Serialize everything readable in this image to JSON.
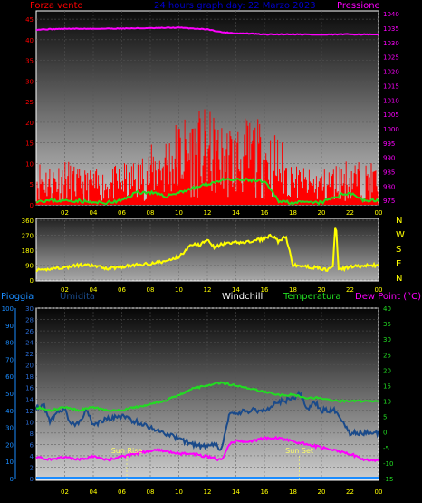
{
  "header": {
    "left_label": "Forza vento",
    "center_label": "24 hours graph day:  22 Marzo 2023",
    "right_label": "Pressione"
  },
  "direction_labels": [
    "N",
    "W",
    "S",
    "E",
    "N"
  ],
  "bottom_header": {
    "pioggia": "Pioggia",
    "umidita": "Umidita",
    "windchill": "Windchill",
    "temperatura": "Temperatura",
    "dew_point": "Dew Point (°C)"
  },
  "sun": {
    "rise_label": "Sun Rise",
    "set_label": "Sun Set",
    "rise_time": 6.35,
    "set_time": 18.45
  },
  "colors": {
    "wind": "#ff0000",
    "gust_avg": "#22dd22",
    "pressure": "#ff00ff",
    "direction": "#ffff00",
    "temperature": "#22dd22",
    "humidity": "#1a4a8a",
    "dew_point": "#ff00ff",
    "rain": "#1a8cff",
    "header_center": "#0000cc"
  },
  "chart_data": [
    {
      "type": "line",
      "name": "wind-pressure",
      "x_tick_labels": [
        "02",
        "04",
        "06",
        "08",
        "10",
        "12",
        "14",
        "16",
        "18",
        "20",
        "22",
        "00"
      ],
      "x_range": [
        0,
        24
      ],
      "y_left_ticks": [
        "0",
        "5",
        "10",
        "15",
        "20",
        "25",
        "30",
        "35",
        "40",
        "45"
      ],
      "ylim_left": [
        0,
        47
      ],
      "y_right_ticks": [
        "975",
        "980",
        "985",
        "990",
        "995",
        "1000",
        "1005",
        "1010",
        "1015",
        "1020",
        "1025",
        "1030",
        "1035",
        "1040"
      ],
      "ylim_right": [
        973.5,
        1041
      ],
      "series": [
        {
          "key": "wind_speed",
          "axis": "left",
          "style": "spiky",
          "x": [
            0,
            1,
            2,
            3,
            4,
            5,
            6,
            7,
            8,
            9,
            10,
            11,
            12,
            13,
            14,
            15,
            16,
            17,
            18,
            19,
            20,
            21,
            22,
            23,
            24
          ],
          "values": [
            8,
            7,
            8,
            6,
            6,
            6,
            7,
            8,
            10,
            12,
            15,
            16,
            16,
            14,
            14,
            15,
            14,
            12,
            7,
            6,
            6,
            7,
            8,
            7,
            7
          ]
        },
        {
          "key": "avg_wind",
          "axis": "left",
          "x": [
            0,
            1,
            2,
            3,
            4,
            5,
            6,
            7,
            8,
            9,
            10,
            11,
            12,
            13,
            14,
            15,
            16,
            17,
            18,
            19,
            20,
            21,
            22,
            23,
            24
          ],
          "values": [
            1,
            1,
            1,
            1,
            0.5,
            0.5,
            1,
            3,
            3,
            2,
            3,
            4,
            5,
            6,
            6,
            6,
            5.5,
            1,
            0.5,
            0.5,
            0.5,
            2,
            3,
            1,
            1
          ]
        },
        {
          "key": "pressure",
          "axis": "right",
          "x": [
            0,
            2,
            4,
            6,
            8,
            10,
            12,
            13,
            14,
            15,
            16,
            18,
            20,
            22,
            24
          ],
          "values": [
            1034.5,
            1034.8,
            1034.8,
            1034.9,
            1035.0,
            1035.2,
            1034.6,
            1033.6,
            1033.2,
            1033.1,
            1032.8,
            1032.9,
            1032.7,
            1032.9,
            1032.7
          ]
        }
      ]
    },
    {
      "type": "line",
      "name": "wind-direction",
      "x_tick_labels": [
        "02",
        "04",
        "06",
        "08",
        "10",
        "12",
        "14",
        "16",
        "18",
        "20",
        "22",
        "00"
      ],
      "x_range": [
        0,
        24
      ],
      "y_ticks": [
        "0",
        "90",
        "180",
        "270",
        "360"
      ],
      "ylim": [
        0,
        360
      ],
      "series": [
        {
          "key": "direction",
          "x": [
            0,
            0.5,
            1,
            2,
            3,
            4,
            5,
            6,
            7,
            8,
            9,
            10,
            10.5,
            11,
            11.5,
            12,
            12.5,
            13,
            14,
            15,
            16,
            16.5,
            17,
            17.5,
            18,
            19,
            20,
            20.5,
            20.8,
            21,
            21.2,
            22,
            23,
            24
          ],
          "values": [
            60,
            55,
            70,
            75,
            90,
            85,
            70,
            80,
            90,
            100,
            110,
            140,
            180,
            220,
            210,
            250,
            195,
            215,
            225,
            230,
            250,
            270,
            230,
            260,
            90,
            80,
            70,
            60,
            90,
            360,
            60,
            80,
            85,
            90
          ]
        }
      ]
    },
    {
      "type": "line",
      "name": "temperature-humidity",
      "x_tick_labels": [
        "02",
        "04",
        "06",
        "08",
        "10",
        "12",
        "14",
        "16",
        "18",
        "20",
        "22",
        "00"
      ],
      "x_range": [
        0,
        24
      ],
      "y_left_ticks": [
        "0",
        "10",
        "20",
        "30",
        "40",
        "50",
        "60",
        "70",
        "80",
        "90",
        "100"
      ],
      "y_left2_ticks": [
        "0",
        "2",
        "4",
        "6",
        "8",
        "10",
        "12",
        "14",
        "16",
        "18",
        "20",
        "22",
        "24",
        "26",
        "28",
        "30"
      ],
      "ylim_left2": [
        0,
        30
      ],
      "y_right_ticks": [
        "-15",
        "-10",
        "-5",
        "0",
        "5",
        "10",
        "15",
        "20",
        "25",
        "30",
        "35",
        "40"
      ],
      "ylim_right": [
        -15,
        40
      ],
      "series": [
        {
          "key": "temperature",
          "axis": "right",
          "x": [
            0,
            1,
            2,
            3,
            4,
            5,
            6,
            7,
            8,
            9,
            10,
            11,
            12,
            13,
            14,
            15,
            16,
            17,
            18,
            19,
            20,
            21,
            22,
            23,
            24
          ],
          "values": [
            8,
            7,
            8,
            7,
            8,
            7,
            7,
            8,
            9,
            10,
            12,
            14,
            15,
            16,
            15,
            14,
            13,
            12,
            12,
            11,
            11,
            10,
            10,
            10,
            10
          ]
        },
        {
          "key": "humidity",
          "axis": "left2",
          "x": [
            0,
            0.5,
            1,
            1.5,
            2,
            2.5,
            3,
            3.5,
            4,
            5,
            6,
            7,
            8,
            9,
            10,
            11,
            12,
            12.5,
            13,
            13.5,
            14,
            15,
            16,
            17,
            18,
            18.5,
            19,
            19.5,
            20,
            21,
            22,
            23,
            24
          ],
          "values": [
            12.5,
            13,
            10,
            12,
            12,
            9.5,
            10,
            12,
            9.5,
            10.5,
            11,
            10,
            9,
            8,
            7,
            6,
            5.5,
            6,
            5,
            11,
            11.5,
            12,
            12,
            13.5,
            14,
            15,
            12,
            13.5,
            12,
            12,
            8,
            8,
            8
          ]
        },
        {
          "key": "dew_point",
          "axis": "right",
          "x": [
            0,
            1,
            2,
            3,
            4,
            5,
            6,
            7,
            8,
            9,
            10,
            11,
            12,
            13,
            13.5,
            14,
            15,
            16,
            17,
            18,
            19,
            20,
            21,
            22,
            23,
            24
          ],
          "values": [
            -8,
            -9,
            -8,
            -9,
            -8,
            -9,
            -8,
            -7,
            -6,
            -6,
            -7,
            -7,
            -8,
            -9,
            -4,
            -3,
            -3,
            -2,
            -2,
            -3,
            -4,
            -5,
            -6,
            -7,
            -9,
            -9
          ]
        },
        {
          "key": "rain",
          "axis": "left",
          "x": [
            0,
            24
          ],
          "values": [
            0,
            0
          ]
        }
      ]
    }
  ]
}
